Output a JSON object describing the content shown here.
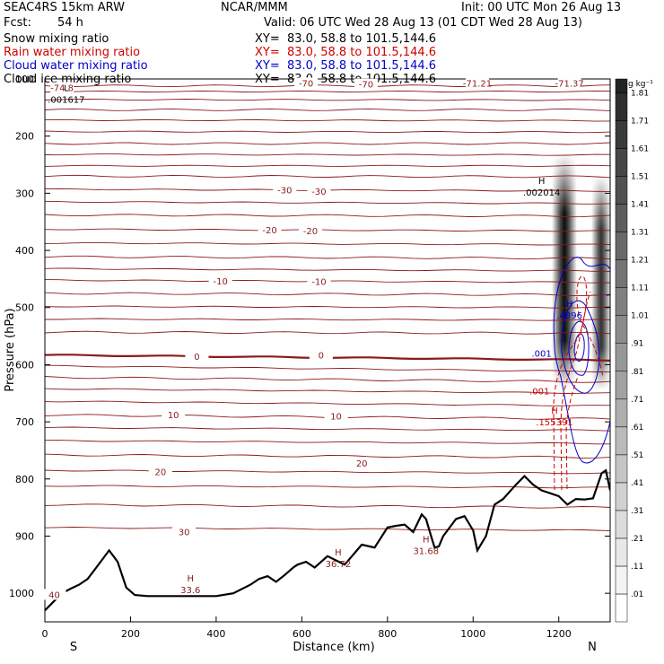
{
  "header": {
    "model": "SEAC4RS 15km ARW",
    "institution": "NCAR/MMM",
    "init": "Init: 00 UTC Mon 26 Aug 13",
    "fcst_label": "Fcst:",
    "fcst_value": "54 h",
    "valid": "Valid: 06 UTC Wed 28 Aug 13 (01 CDT Wed 28 Aug 13)"
  },
  "fields": [
    {
      "name": "Snow mixing ratio",
      "xy": "XY=  83.0, 58.8 to 101.5,144.6",
      "color": "#000000"
    },
    {
      "name": "Rain water mixing ratio",
      "xy": "XY=  83.0, 58.8 to 101.5,144.6",
      "color": "#d00000"
    },
    {
      "name": "Cloud water mixing ratio",
      "xy": "XY=  83.0, 58.8 to 101.5,144.6",
      "color": "#0000cc"
    },
    {
      "name": "Cloud ice mixing ratio",
      "xy": "XY=  83.0, 58.8 to 101.5,144.6",
      "color": "#000000"
    }
  ],
  "chart_data": {
    "type": "cross-section",
    "xlabel": "Distance (km)",
    "ylabel": "Pressure (hPa)",
    "xlim": [
      0,
      1320
    ],
    "ylim": [
      100,
      1050
    ],
    "x_ticks": [
      0,
      200,
      400,
      600,
      800,
      1000,
      1200
    ],
    "y_ticks": [
      100,
      200,
      300,
      400,
      500,
      600,
      700,
      800,
      900,
      1000
    ],
    "end_labels": {
      "left": "S",
      "right": "N"
    },
    "colorbar": {
      "unit": "g kg⁻¹",
      "levels": [
        ".01",
        ".11",
        ".21",
        ".31",
        ".41",
        ".51",
        ".61",
        ".71",
        ".81",
        ".91",
        "1.01",
        "1.11",
        "1.21",
        "1.31",
        "1.41",
        "1.51",
        "1.61",
        "1.71",
        "1.81"
      ]
    },
    "temperature_labels": [
      {
        "text": "-74.8",
        "x": 40,
        "p": 115
      },
      {
        "text": "-70",
        "x": 610,
        "p": 107
      },
      {
        "text": "-70",
        "x": 750,
        "p": 109
      },
      {
        "text": "-71.21",
        "x": 1010,
        "p": 107
      },
      {
        "text": "-71.37",
        "x": 1225,
        "p": 107
      },
      {
        "text": "-30",
        "x": 560,
        "p": 294
      },
      {
        "text": "-30",
        "x": 640,
        "p": 296
      },
      {
        "text": "-20",
        "x": 525,
        "p": 364
      },
      {
        "text": "-20",
        "x": 620,
        "p": 365
      },
      {
        "text": "-10",
        "x": 410,
        "p": 453
      },
      {
        "text": "-10",
        "x": 640,
        "p": 454
      },
      {
        "text": "0",
        "x": 355,
        "p": 585
      },
      {
        "text": "0",
        "x": 645,
        "p": 583
      },
      {
        "text": "10",
        "x": 300,
        "p": 687
      },
      {
        "text": "10",
        "x": 680,
        "p": 690
      },
      {
        "text": "20",
        "x": 270,
        "p": 787
      },
      {
        "text": "20",
        "x": 740,
        "p": 772
      },
      {
        "text": "30",
        "x": 325,
        "p": 892
      },
      {
        "text": "40",
        "x": 22,
        "p": 1002
      }
    ],
    "extrema_labels": [
      {
        "marker": "L",
        "value": ".001617",
        "x": 50,
        "p": 132,
        "color": "#000000"
      },
      {
        "marker": "H",
        "value": ".002014",
        "x": 1160,
        "p": 295,
        "color": "#000000"
      },
      {
        "marker": "H",
        "value": "33.6",
        "x": 340,
        "p": 990,
        "color": "#8b1a1a"
      },
      {
        "marker": "H",
        "value": "36.72",
        "x": 685,
        "p": 945,
        "color": "#8b1a1a"
      },
      {
        "marker": "H",
        "value": "31.68",
        "x": 890,
        "p": 922,
        "color": "#8b1a1a"
      },
      {
        "marker": "H",
        "value": ".4896",
        "x": 1225,
        "p": 510,
        "color": "#0000cc"
      },
      {
        "marker": "H",
        "value": ".155391",
        "x": 1190,
        "p": 697,
        "color": "#d00000"
      }
    ],
    "minor_labels": [
      {
        "text": ".001",
        "x": 1160,
        "p": 580,
        "color": "#0000cc"
      },
      {
        "text": ".001",
        "x": 1155,
        "p": 646,
        "color": "#d00000"
      }
    ],
    "terrain_pressure": [
      [
        0,
        1030
      ],
      [
        20,
        1015
      ],
      [
        40,
        1000
      ],
      [
        60,
        992
      ],
      [
        80,
        985
      ],
      [
        100,
        975
      ],
      [
        120,
        955
      ],
      [
        150,
        925
      ],
      [
        170,
        945
      ],
      [
        190,
        990
      ],
      [
        210,
        1003
      ],
      [
        240,
        1005
      ],
      [
        300,
        1005
      ],
      [
        400,
        1005
      ],
      [
        440,
        1000
      ],
      [
        480,
        985
      ],
      [
        500,
        975
      ],
      [
        520,
        970
      ],
      [
        540,
        980
      ],
      [
        560,
        968
      ],
      [
        580,
        955
      ],
      [
        590,
        950
      ],
      [
        610,
        945
      ],
      [
        630,
        955
      ],
      [
        660,
        935
      ],
      [
        700,
        950
      ],
      [
        740,
        915
      ],
      [
        770,
        920
      ],
      [
        800,
        885
      ],
      [
        820,
        882
      ],
      [
        840,
        880
      ],
      [
        860,
        893
      ],
      [
        880,
        862
      ],
      [
        890,
        870
      ],
      [
        900,
        895
      ],
      [
        910,
        920
      ],
      [
        920,
        918
      ],
      [
        930,
        900
      ],
      [
        960,
        870
      ],
      [
        980,
        865
      ],
      [
        1000,
        890
      ],
      [
        1010,
        925
      ],
      [
        1030,
        900
      ],
      [
        1050,
        845
      ],
      [
        1070,
        835
      ],
      [
        1100,
        810
      ],
      [
        1120,
        795
      ],
      [
        1140,
        810
      ],
      [
        1160,
        820
      ],
      [
        1180,
        825
      ],
      [
        1200,
        830
      ],
      [
        1220,
        845
      ],
      [
        1240,
        835
      ],
      [
        1260,
        836
      ],
      [
        1280,
        834
      ],
      [
        1300,
        790
      ],
      [
        1310,
        785
      ],
      [
        1320,
        820
      ]
    ],
    "isotherms": [
      {
        "level": "-74.8",
        "pressure": [
          112,
          112
        ]
      },
      {
        "level": "-70",
        "pressure": [
          122,
          122
        ]
      },
      {
        "level": "",
        "pressure": [
          136,
          137
        ]
      },
      {
        "level": "",
        "pressure": [
          154,
          154
        ]
      },
      {
        "level": "",
        "pressure": [
          172,
          173
        ]
      },
      {
        "level": "",
        "pressure": [
          192,
          193
        ]
      },
      {
        "level": "",
        "pressure": [
          213,
          213
        ]
      },
      {
        "level": "",
        "pressure": [
          232,
          233
        ]
      },
      {
        "level": "",
        "pressure": [
          252,
          252
        ]
      },
      {
        "level": "",
        "pressure": [
          270,
          271
        ]
      },
      {
        "level": "-30",
        "pressure": [
          293,
          296
        ]
      },
      {
        "level": "",
        "pressure": [
          315,
          318
        ]
      },
      {
        "level": "",
        "pressure": [
          338,
          340
        ]
      },
      {
        "level": "-20",
        "pressure": [
          363,
          366
        ]
      },
      {
        "level": "",
        "pressure": [
          387,
          390
        ]
      },
      {
        "level": "",
        "pressure": [
          411,
          414
        ]
      },
      {
        "level": "",
        "pressure": [
          432,
          436
        ]
      },
      {
        "level": "-10",
        "pressure": [
          452,
          456
        ]
      },
      {
        "level": "",
        "pressure": [
          475,
          478
        ]
      },
      {
        "level": "",
        "pressure": [
          498,
          500
        ]
      },
      {
        "level": "",
        "pressure": [
          520,
          522
        ]
      },
      {
        "level": "",
        "pressure": [
          543,
          545
        ]
      },
      {
        "level": "0",
        "pressure": [
          583,
          592
        ]
      },
      {
        "level": "",
        "pressure": [
          602,
          612
        ]
      },
      {
        "level": "",
        "pressure": [
          622,
          630
        ]
      },
      {
        "level": "",
        "pressure": [
          642,
          650
        ]
      },
      {
        "level": "",
        "pressure": [
          664,
          672
        ]
      },
      {
        "level": "10",
        "pressure": [
          688,
          695
        ]
      },
      {
        "level": "",
        "pressure": [
          710,
          715
        ]
      },
      {
        "level": "",
        "pressure": [
          733,
          738
        ]
      },
      {
        "level": "",
        "pressure": [
          758,
          762
        ]
      },
      {
        "level": "20",
        "pressure": [
          785,
          790
        ]
      },
      {
        "level": "",
        "pressure": [
          812,
          815
        ]
      },
      {
        "level": "",
        "pressure": [
          845,
          850
        ]
      },
      {
        "level": "30",
        "pressure": [
          885,
          890
        ]
      }
    ]
  }
}
